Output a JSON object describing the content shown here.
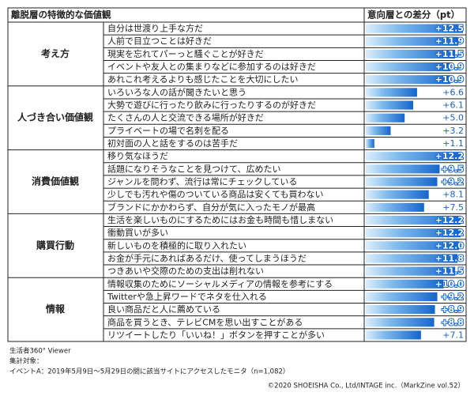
{
  "chart_data": {
    "type": "bar",
    "title": "離脱層の特徴的な価値観",
    "value_header": "意向層との差分（pt）",
    "groups": [
      {
        "name": "考え方",
        "categories": [
          "自分は世渡り上手な方だ",
          "人前で目立つことは好きだ",
          "現実を忘れてパーっと騒ぐことが好きだ",
          "イベントや友人との集まりなどに参加するのは好きだ",
          "あれこれ考えるよりも感じたことを大切にしたい"
        ],
        "values": [
          12.5,
          11.9,
          11.5,
          10.9,
          10.9
        ],
        "value_labels": [
          "+12.5",
          "+11.9",
          "+11.5",
          "+10.9",
          "+10.9"
        ]
      },
      {
        "name": "人づき合い価値観",
        "categories": [
          "いろいろな人の話が聞きたいと思う",
          "大勢で遊びに行ったり飲みに行ったりするのが好きだ",
          "たくさんの人と交流できる場所が好きだ",
          "プライベートの場で名刺を配る",
          "初対面の人と話をするのは苦手だ"
        ],
        "values": [
          6.6,
          6.1,
          5.0,
          3.2,
          1.1
        ],
        "value_labels": [
          "+6.6",
          "+6.1",
          "+5.0",
          "+3.2",
          "+1.1"
        ]
      },
      {
        "name": "消費価値観",
        "categories": [
          "移り気なほうだ",
          "話題になりそうなことを見つけて、広めたい",
          "ジャンルを問わず、流行は常にチェックしている",
          "少しでも汚れや傷のついている商品は安くても買わない",
          "ブランドにかかわらず、自分が気に入ったモノが最高"
        ],
        "values": [
          12.2,
          9.5,
          9.2,
          8.1,
          7.5
        ],
        "value_labels": [
          "+12.2",
          "+9.5",
          "+9.2",
          "+8.1",
          "+7.5"
        ]
      },
      {
        "name": "購買行動",
        "categories": [
          "生活を楽しいものにするためにはお金も時間も惜しまない",
          "衝動買いが多い",
          "新しいものを積極的に取り入れたい",
          "お金が手元にあればあるだけ、使ってしまうほうだ",
          "つきあいや交際のための支出は削れない"
        ],
        "values": [
          12.2,
          12.2,
          12.0,
          11.8,
          11.5
        ],
        "value_labels": [
          "+12.2",
          "+12.2",
          "+12.0",
          "+11.8",
          "+11.5"
        ]
      },
      {
        "name": "情報",
        "categories": [
          "情報収集のためにソーシャルメディアの情報を参考にする",
          "Twitterや急上昇ワードでネタを仕入れる",
          "良い商品だと人に薦めている",
          "商品を買うとき、テレビCMを思い出すことがある",
          "リツイートしたり「いいね！」ボタンを押すことが多い"
        ],
        "values": [
          10.0,
          9.2,
          8.9,
          8.8,
          7.1
        ],
        "value_labels": [
          "+10.0",
          "+9.2",
          "+8.9",
          "+8.8",
          "+7.1"
        ]
      }
    ],
    "notes": [
      "生活者360° Viewer",
      "集計対象：",
      "イベントA：2019年5月9日～5月29日の間に該当サイトにアクセスしたモニタ（n=1,082）"
    ],
    "copyright": "©2020 SHOEISHA Co., Ltd/INTAGE inc.（MarkZine vol.52）"
  }
}
